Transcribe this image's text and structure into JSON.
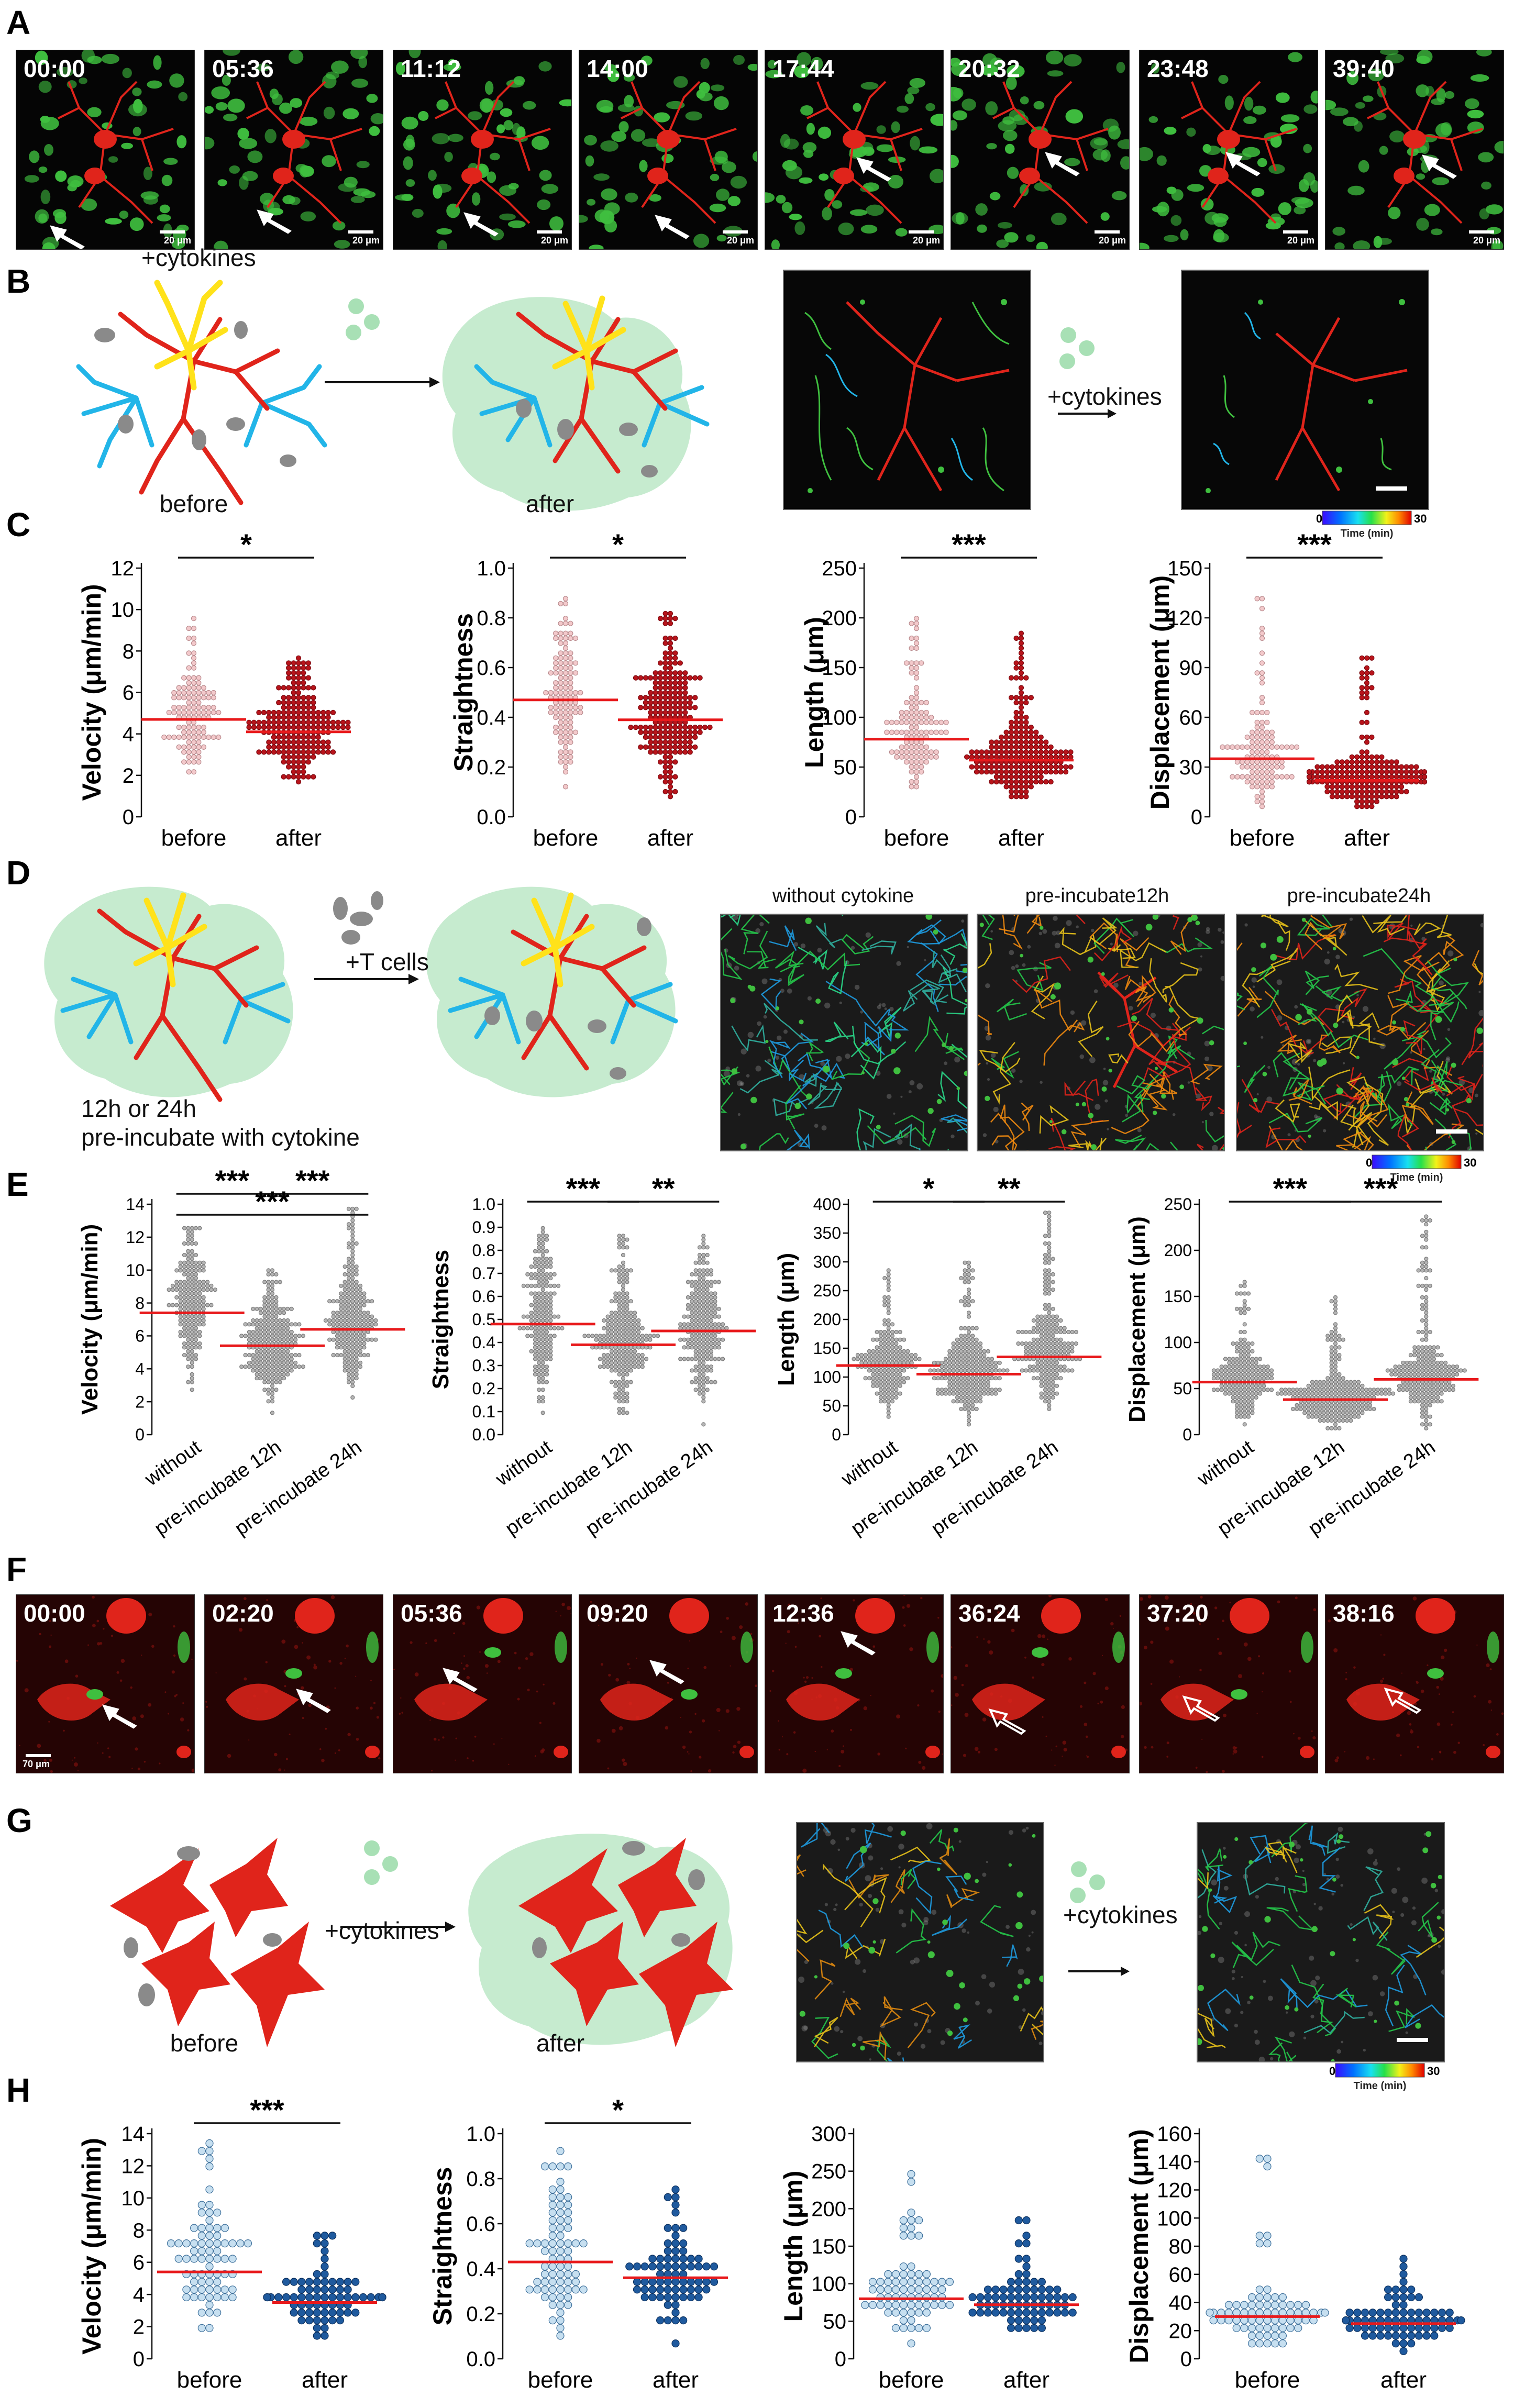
{
  "panels": {
    "A": {
      "label": "A",
      "timestamps": [
        "00:00",
        "05:36",
        "11:12",
        "14:00",
        "17:44",
        "20:32",
        "23:48",
        "39:40"
      ],
      "scalebar": "20 μm"
    },
    "B": {
      "label": "B",
      "treatment": "+cytokines",
      "before_caption": "before",
      "after_caption": "after",
      "colorbar": {
        "min": "0",
        "max": "30",
        "title": "Time (min)"
      }
    },
    "C": {
      "label": "C"
    },
    "D": {
      "label": "D",
      "treatment": "+T cells",
      "caption_line1": "12h or 24h",
      "caption_line2": "pre-incubate with cytokine",
      "image_labels": [
        "without cytokine",
        "pre-incubate12h",
        "pre-incubate24h"
      ],
      "colorbar": {
        "min": "0",
        "max": "30",
        "title": "Time (min)"
      }
    },
    "E": {
      "label": "E"
    },
    "F": {
      "label": "F",
      "timestamps": [
        "00:00",
        "02:20",
        "05:36",
        "09:20",
        "12:36",
        "36:24",
        "37:20",
        "38:16"
      ],
      "scalebar": "70 μm"
    },
    "G": {
      "label": "G",
      "treatment": "+cytokines",
      "before_caption": "before",
      "after_caption": "after",
      "colorbar": {
        "min": "0",
        "max": "30",
        "title": "Time (min)"
      }
    },
    "H": {
      "label": "H"
    }
  },
  "colors": {
    "tcell_green": "#3fbf3f",
    "dc_red": "#e0241b",
    "cytokine_green": "#a8e0b5",
    "yellow_cell": "#ffe21a",
    "cyan_cell": "#22b5e8",
    "gray_cell": "#8a8a8a",
    "mean_line": "#e8191b",
    "c_before_dot": "#f3c9cb",
    "c_after_dot": "#b8141b",
    "e_dot": "#b5b5b5",
    "h_before_dot": "#c6dff0",
    "h_after_dot": "#1f5a9e"
  },
  "chart_data": [
    {
      "id": "C1",
      "type": "scatter",
      "ylabel": "Velocity (μm/min)",
      "categories": [
        "before",
        "after"
      ],
      "ylim": [
        0,
        12
      ],
      "yticks": [
        0,
        2,
        4,
        6,
        8,
        10,
        12
      ],
      "series": [
        {
          "category": "before",
          "mean": 4.7,
          "min": 1.2,
          "max": 9.5,
          "n": 120
        },
        {
          "category": "after",
          "mean": 4.1,
          "min": 0.8,
          "max": 7.6,
          "n": 220
        }
      ],
      "significance": [
        {
          "from": 0,
          "to": 1,
          "label": "*"
        }
      ]
    },
    {
      "id": "C2",
      "type": "scatter",
      "ylabel": "Straightness",
      "categories": [
        "before",
        "after"
      ],
      "ylim": [
        0,
        1.0
      ],
      "yticks": [
        0.0,
        0.2,
        0.4,
        0.6,
        0.8,
        1.0
      ],
      "series": [
        {
          "category": "before",
          "mean": 0.47,
          "min": 0.02,
          "max": 0.9,
          "n": 120
        },
        {
          "category": "after",
          "mean": 0.39,
          "min": 0.01,
          "max": 0.82,
          "n": 220
        }
      ],
      "significance": [
        {
          "from": 0,
          "to": 1,
          "label": "*"
        }
      ]
    },
    {
      "id": "C3",
      "type": "scatter",
      "ylabel": "Length (μm)",
      "categories": [
        "before",
        "after"
      ],
      "ylim": [
        0,
        250
      ],
      "yticks": [
        0,
        50,
        100,
        150,
        200,
        250
      ],
      "series": [
        {
          "category": "before",
          "mean": 78,
          "min": 12,
          "max": 220,
          "n": 120
        },
        {
          "category": "after",
          "mean": 57,
          "min": 8,
          "max": 185,
          "n": 220
        }
      ],
      "significance": [
        {
          "from": 0,
          "to": 1,
          "label": "***"
        }
      ]
    },
    {
      "id": "C4",
      "type": "scatter",
      "ylabel": "Displacement (μm)",
      "categories": [
        "before",
        "after"
      ],
      "ylim": [
        0,
        150
      ],
      "yticks": [
        0,
        30,
        60,
        90,
        120,
        150
      ],
      "series": [
        {
          "category": "before",
          "mean": 35,
          "min": 1,
          "max": 135,
          "n": 120
        },
        {
          "category": "after",
          "mean": 22,
          "min": 0.5,
          "max": 100,
          "n": 220
        }
      ],
      "significance": [
        {
          "from": 0,
          "to": 1,
          "label": "***"
        }
      ]
    },
    {
      "id": "E1",
      "type": "scatter",
      "ylabel": "Velocity (μm/min)",
      "categories": [
        "without",
        "pre-incubate 12h",
        "pre-incubate 24h"
      ],
      "ylim": [
        0,
        14
      ],
      "yticks": [
        0,
        2,
        4,
        6,
        8,
        10,
        12,
        14
      ],
      "series": [
        {
          "category": "without",
          "mean": 7.4,
          "min": 1.5,
          "max": 12.6,
          "n": 200
        },
        {
          "category": "pre-incubate 12h",
          "mean": 5.4,
          "min": 0.8,
          "max": 10.2,
          "n": 260
        },
        {
          "category": "pre-incubate 24h",
          "mean": 6.4,
          "min": 1.2,
          "max": 13.8,
          "n": 240
        }
      ],
      "significance": [
        {
          "from": 0,
          "to": 1,
          "label": "***"
        },
        {
          "from": 1,
          "to": 2,
          "label": "***"
        },
        {
          "from": 0,
          "to": 2,
          "label": "***"
        }
      ]
    },
    {
      "id": "E2",
      "type": "scatter",
      "ylabel": "Straightness",
      "categories": [
        "without",
        "pre-incubate 12h",
        "pre-incubate 24h"
      ],
      "ylim": [
        0,
        1.0
      ],
      "yticks": [
        0.0,
        0.1,
        0.2,
        0.3,
        0.4,
        0.5,
        0.6,
        0.7,
        0.8,
        0.9,
        1.0
      ],
      "series": [
        {
          "category": "without",
          "mean": 0.48,
          "min": 0.02,
          "max": 0.9,
          "n": 200
        },
        {
          "category": "pre-incubate 12h",
          "mean": 0.39,
          "min": 0.01,
          "max": 0.88,
          "n": 260
        },
        {
          "category": "pre-incubate 24h",
          "mean": 0.45,
          "min": 0.02,
          "max": 0.88,
          "n": 240
        }
      ],
      "significance": [
        {
          "from": 0,
          "to": 1,
          "label": "***"
        },
        {
          "from": 1,
          "to": 2,
          "label": "**"
        }
      ]
    },
    {
      "id": "E3",
      "type": "scatter",
      "ylabel": "Length (μm)",
      "categories": [
        "without",
        "pre-incubate 12h",
        "pre-incubate 24h"
      ],
      "ylim": [
        0,
        400
      ],
      "yticks": [
        0,
        50,
        100,
        150,
        200,
        250,
        300,
        350,
        400
      ],
      "series": [
        {
          "category": "without",
          "mean": 120,
          "min": 15,
          "max": 290,
          "n": 200
        },
        {
          "category": "pre-incubate 12h",
          "mean": 105,
          "min": 10,
          "max": 300,
          "n": 260
        },
        {
          "category": "pre-incubate 24h",
          "mean": 135,
          "min": 15,
          "max": 390,
          "n": 240
        }
      ],
      "significance": [
        {
          "from": 0,
          "to": 1,
          "label": "*"
        },
        {
          "from": 1,
          "to": 2,
          "label": "**"
        }
      ]
    },
    {
      "id": "E4",
      "type": "scatter",
      "ylabel": "Displacement (μm)",
      "categories": [
        "without",
        "pre-incubate 12h",
        "pre-incubate 24h"
      ],
      "ylim": [
        0,
        250
      ],
      "yticks": [
        0,
        50,
        100,
        150,
        200,
        250
      ],
      "series": [
        {
          "category": "without",
          "mean": 57,
          "min": 2,
          "max": 170,
          "n": 200
        },
        {
          "category": "pre-incubate 12h",
          "mean": 38,
          "min": 1,
          "max": 150,
          "n": 260
        },
        {
          "category": "pre-incubate 24h",
          "mean": 60,
          "min": 2,
          "max": 240,
          "n": 240
        }
      ],
      "significance": [
        {
          "from": 0,
          "to": 1,
          "label": "***"
        },
        {
          "from": 1,
          "to": 2,
          "label": "***"
        }
      ]
    },
    {
      "id": "H1",
      "type": "scatter",
      "ylabel": "Velocity (μm/min)",
      "categories": [
        "before",
        "after"
      ],
      "ylim": [
        0,
        14
      ],
      "yticks": [
        0,
        2,
        4,
        6,
        8,
        10,
        12,
        14
      ],
      "series": [
        {
          "category": "before",
          "mean": 5.4,
          "min": 0.8,
          "max": 13.5,
          "n": 75
        },
        {
          "category": "after",
          "mean": 3.5,
          "min": 0.5,
          "max": 8.0,
          "n": 75
        }
      ],
      "significance": [
        {
          "from": 0,
          "to": 1,
          "label": "***"
        }
      ]
    },
    {
      "id": "H2",
      "type": "scatter",
      "ylabel": "Straightness",
      "categories": [
        "before",
        "after"
      ],
      "ylim": [
        0,
        1.0
      ],
      "yticks": [
        0.0,
        0.2,
        0.4,
        0.6,
        0.8,
        1.0
      ],
      "series": [
        {
          "category": "before",
          "mean": 0.43,
          "min": 0.02,
          "max": 0.95,
          "n": 75
        },
        {
          "category": "after",
          "mean": 0.36,
          "min": 0.02,
          "max": 0.75,
          "n": 75
        }
      ],
      "significance": [
        {
          "from": 0,
          "to": 1,
          "label": "*"
        }
      ]
    },
    {
      "id": "H3",
      "type": "scatter",
      "ylabel": "Length (μm)",
      "categories": [
        "before",
        "after"
      ],
      "ylim": [
        0,
        300
      ],
      "yticks": [
        0,
        50,
        100,
        150,
        200,
        250,
        300
      ],
      "series": [
        {
          "category": "before",
          "mean": 80,
          "min": 15,
          "max": 255,
          "n": 75
        },
        {
          "category": "after",
          "mean": 72,
          "min": 15,
          "max": 195,
          "n": 75
        }
      ],
      "significance": []
    },
    {
      "id": "H4",
      "type": "scatter",
      "ylabel": "Displacement (μm)",
      "categories": [
        "before",
        "after"
      ],
      "ylim": [
        0,
        160
      ],
      "yticks": [
        0,
        20,
        40,
        60,
        80,
        100,
        120,
        140,
        160
      ],
      "series": [
        {
          "category": "before",
          "mean": 30,
          "min": 1,
          "max": 148,
          "n": 75
        },
        {
          "category": "after",
          "mean": 25,
          "min": 1,
          "max": 72,
          "n": 75
        }
      ],
      "significance": []
    }
  ]
}
